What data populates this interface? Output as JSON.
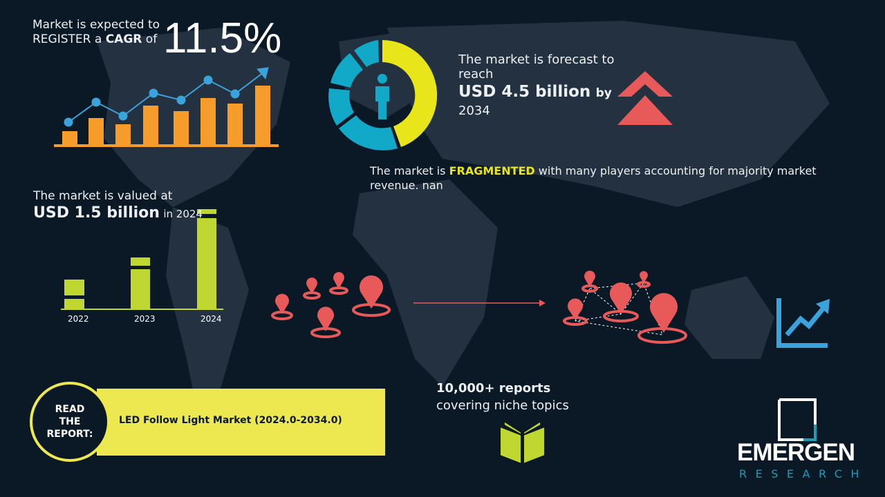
{
  "cagr": {
    "line1": "Market is expected to",
    "line2_pre": "REGISTER a ",
    "line2_bold": "CAGR",
    "line2_post": " of",
    "value": "11.5%"
  },
  "forecast": {
    "line1": "The market is forecast to",
    "line2": "reach",
    "value": "USD 4.5 billion",
    "by": "by",
    "year": "2034"
  },
  "fragmented": {
    "pre": "The market is ",
    "highlight": "FRAGMENTED",
    "post": " with many players accounting for majority market revenue. nan"
  },
  "valued": {
    "line1": "The market is valued at",
    "value": "USD 1.5 billion",
    "suffix": "in 2024",
    "years": [
      "2022",
      "2023",
      "2024"
    ]
  },
  "reports": {
    "line1": "10,000+ reports",
    "line2": "covering niche topics"
  },
  "read": {
    "label": [
      "READ",
      "THE",
      "REPORT:"
    ],
    "title": "LED Follow Light Market (2024.0-2034.0)"
  },
  "logo": {
    "name": "EMERGEN",
    "sub": "RESEARCH"
  },
  "colors": {
    "bg": "#0b1826",
    "orange": "#f59c2a",
    "blue": "#3ba3dc",
    "yellow": "#e8e51a",
    "green": "#bfd730",
    "red": "#e85a5a",
    "banner": "#ede84f",
    "teal": "#1f9bb5"
  }
}
